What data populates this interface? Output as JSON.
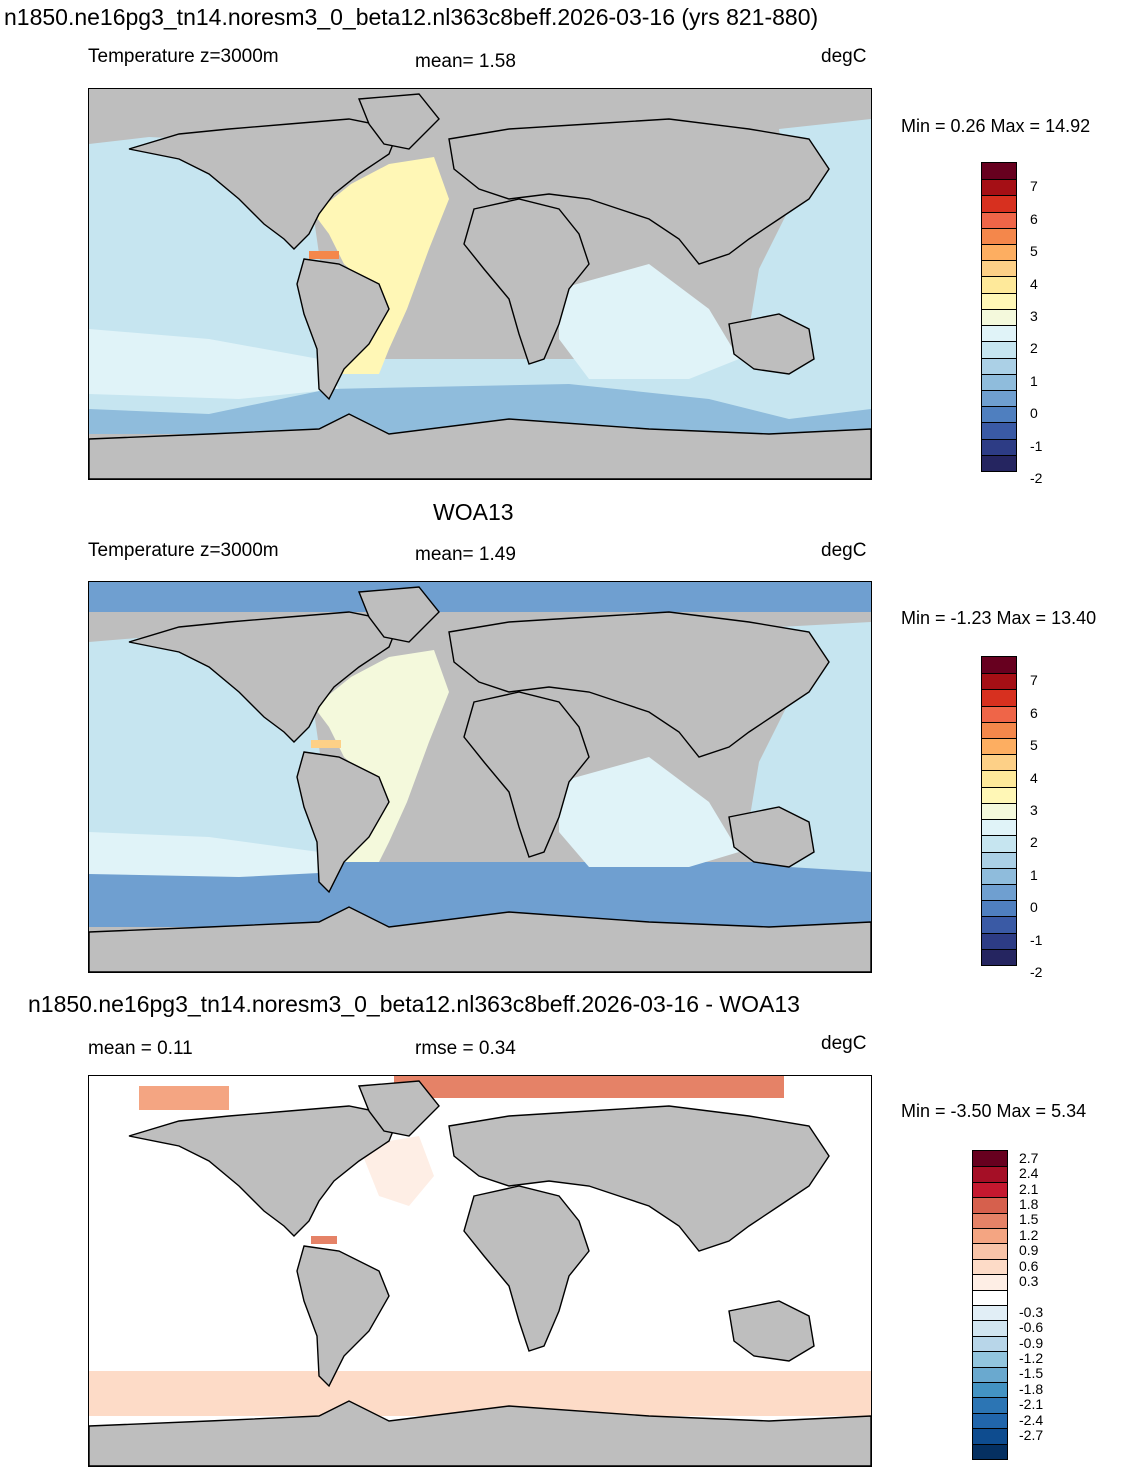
{
  "panels": [
    {
      "id": "model",
      "title": "n1850.ne16pg3_tn14.noresm3_0_beta12.nl363c8beff.2026-03-16 (yrs 821-880)",
      "left_label": "Temperature z=3000m",
      "center_label": "mean=   1.58",
      "right_label": "degC",
      "minmax": "Min =   0.26 Max =  14.92",
      "colorbar_labels": [
        "7",
        "6",
        "5",
        "4",
        "3",
        "2",
        "1",
        "0",
        "-1",
        "-2"
      ],
      "colorbar_colors": [
        "#67001f",
        "#a50f15",
        "#d7301f",
        "#ef6548",
        "#f4874b",
        "#fdae61",
        "#fdd087",
        "#fee99a",
        "#fff7b6",
        "#f4f9dc",
        "#e0f3f8",
        "#c6e5f0",
        "#abd0e6",
        "#8fbcdc",
        "#6f9fd0",
        "#4f7fbf",
        "#3a5aa5",
        "#2d3c85",
        "#252560"
      ]
    },
    {
      "id": "obs",
      "title": "WOA13",
      "left_label": "Temperature z=3000m",
      "center_label": "mean=   1.49",
      "right_label": "degC",
      "minmax": "Min =  -1.23 Max =  13.40",
      "colorbar_labels": [
        "7",
        "6",
        "5",
        "4",
        "3",
        "2",
        "1",
        "0",
        "-1",
        "-2"
      ],
      "colorbar_colors": [
        "#67001f",
        "#a50f15",
        "#d7301f",
        "#ef6548",
        "#f4874b",
        "#fdae61",
        "#fdd087",
        "#fee99a",
        "#fff7b6",
        "#f4f9dc",
        "#e0f3f8",
        "#c6e5f0",
        "#abd0e6",
        "#8fbcdc",
        "#6f9fd0",
        "#4f7fbf",
        "#3a5aa5",
        "#2d3c85",
        "#252560"
      ]
    },
    {
      "id": "diff",
      "title": "n1850.ne16pg3_tn14.noresm3_0_beta12.nl363c8beff.2026-03-16 - WOA13",
      "left_label": "mean =   0.11",
      "center_label": "rmse =   0.34",
      "right_label": "degC",
      "minmax": "Min =  -3.50 Max =   5.34",
      "colorbar_labels": [
        "2.7",
        "2.4",
        "2.1",
        "1.8",
        "1.5",
        "1.2",
        "0.9",
        "0.6",
        "0.3",
        "-0.3",
        "-0.6",
        "-0.9",
        "-1.2",
        "-1.5",
        "-1.8",
        "-2.1",
        "-2.4",
        "-2.7"
      ],
      "colorbar_colors": [
        "#67001f",
        "#a50f26",
        "#c4182f",
        "#d6604d",
        "#e58267",
        "#f4a582",
        "#f9c4a8",
        "#fddbc7",
        "#feeee5",
        "#ffffff",
        "#e1eef6",
        "#d1e5f0",
        "#b8d6e9",
        "#92c5de",
        "#6aa9cf",
        "#4393c3",
        "#2c75b4",
        "#2166ac",
        "#0e4c8f",
        "#053061"
      ]
    }
  ]
}
